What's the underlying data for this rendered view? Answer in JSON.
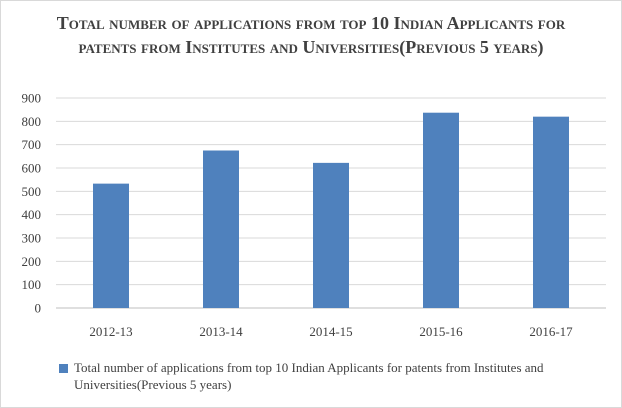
{
  "chart_data": {
    "type": "bar",
    "title": "Total number of applications  from top 10 Indian Applicants for patents from Institutes and Universities(Previous 5 years)",
    "categories": [
      "2012-13",
      "2013-14",
      "2014-15",
      "2015-16",
      "2016-17"
    ],
    "series": [
      {
        "name": "Total number of applications from top 10 Indian Applicants for patents from Institutes and Universities(Previous 5 years)",
        "values": [
          533,
          675,
          622,
          837,
          820
        ],
        "color": "#4f81bd"
      }
    ],
    "yticks": [
      "0",
      "100",
      "200",
      "300",
      "400",
      "500",
      "600",
      "700",
      "800",
      "900"
    ],
    "ylim": [
      0,
      900
    ],
    "grid": true,
    "legend_position": "bottom",
    "xlabel": "",
    "ylabel": ""
  }
}
